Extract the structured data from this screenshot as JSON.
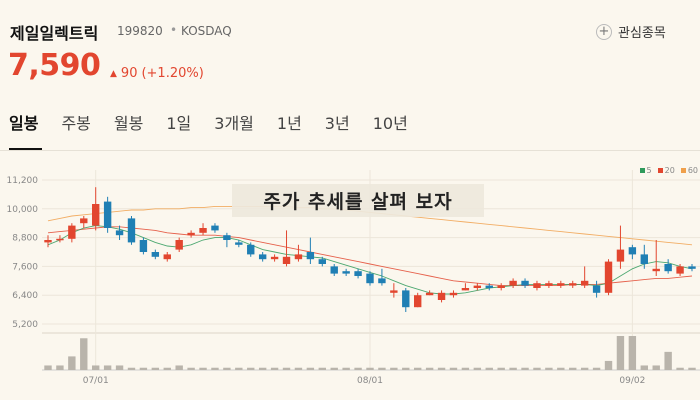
{
  "header": {
    "stock_name": "제일일렉트릭",
    "stock_code": "199820",
    "separator": "•",
    "market": "KOSDAQ",
    "watch_icon": "plus-circle-icon",
    "watch_label": "관심종목"
  },
  "quote": {
    "price": "7,590",
    "arrow": "▲",
    "change": "90",
    "change_pct": "(+1.20%)",
    "color": "#e2462f"
  },
  "tabs": [
    {
      "label": "일봉",
      "active": true
    },
    {
      "label": "주봉"
    },
    {
      "label": "월봉"
    },
    {
      "label": "1일"
    },
    {
      "label": "3개월"
    },
    {
      "label": "1년"
    },
    {
      "label": "3년"
    },
    {
      "label": "10년"
    }
  ],
  "banner_text": "주가 추세를 살펴 보자",
  "chart_data": {
    "type": "candlestick",
    "y_ticks": [
      "11,200",
      "10,000",
      "8,800",
      "7,600",
      "6,400",
      "5,200"
    ],
    "ylim": [
      5200,
      11200
    ],
    "x_ticks": [
      {
        "label": "07/01",
        "index": 4
      },
      {
        "label": "08/01",
        "index": 27
      },
      {
        "label": "09/02",
        "index": 49
      }
    ],
    "legend": [
      {
        "label": "5",
        "color": "#2e9a5b"
      },
      {
        "label": "20",
        "color": "#e2462f"
      },
      {
        "label": "60",
        "color": "#f0a04b"
      }
    ],
    "up_color": "#e2462f",
    "down_color": "#1f7fb4",
    "candles": [
      [
        8600,
        8700,
        8900,
        8400
      ],
      [
        8700,
        8750,
        8900,
        8600
      ],
      [
        8750,
        9300,
        9400,
        8600
      ],
      [
        9400,
        9600,
        9700,
        9200
      ],
      [
        9300,
        10200,
        10900,
        9100
      ],
      [
        10300,
        9200,
        10500,
        9000
      ],
      [
        9100,
        8900,
        9300,
        8700
      ],
      [
        9600,
        8600,
        9700,
        8500
      ],
      [
        8700,
        8200,
        8800,
        8100
      ],
      [
        8200,
        8000,
        8300,
        7900
      ],
      [
        7900,
        8100,
        8200,
        7800
      ],
      [
        8300,
        8700,
        8800,
        8200
      ],
      [
        8900,
        9000,
        9100,
        8800
      ],
      [
        9000,
        9200,
        9400,
        8900
      ],
      [
        9300,
        9100,
        9400,
        9000
      ],
      [
        8900,
        8700,
        9000,
        8400
      ],
      [
        8600,
        8500,
        8700,
        8400
      ],
      [
        8500,
        8100,
        8600,
        8000
      ],
      [
        8100,
        7900,
        8200,
        7800
      ],
      [
        7900,
        8000,
        8100,
        7800
      ],
      [
        7700,
        8000,
        9100,
        7600
      ],
      [
        7900,
        8100,
        8500,
        7800
      ],
      [
        8200,
        7900,
        8800,
        7700
      ],
      [
        7900,
        7700,
        8000,
        7600
      ],
      [
        7600,
        7300,
        7700,
        7200
      ],
      [
        7400,
        7300,
        7500,
        7200
      ],
      [
        7400,
        7200,
        7500,
        7100
      ],
      [
        7300,
        6900,
        7400,
        6800
      ],
      [
        7100,
        6900,
        7500,
        6800
      ],
      [
        6500,
        6600,
        6900,
        6300
      ],
      [
        6600,
        5900,
        6700,
        5700
      ],
      [
        5900,
        6400,
        6500,
        5900
      ],
      [
        6400,
        6500,
        6600,
        6400
      ],
      [
        6200,
        6500,
        6600,
        6100
      ],
      [
        6400,
        6500,
        6600,
        6300
      ],
      [
        6600,
        6700,
        6900,
        6600
      ],
      [
        6700,
        6800,
        6900,
        6600
      ],
      [
        6800,
        6700,
        6900,
        6600
      ],
      [
        6700,
        6800,
        6900,
        6600
      ],
      [
        6800,
        7000,
        7100,
        6700
      ],
      [
        7000,
        6800,
        7100,
        6700
      ],
      [
        6700,
        6900,
        7000,
        6600
      ],
      [
        6800,
        6900,
        7000,
        6700
      ],
      [
        6800,
        6900,
        7000,
        6700
      ],
      [
        6800,
        6900,
        7000,
        6700
      ],
      [
        6800,
        7000,
        7600,
        6700
      ],
      [
        6800,
        6500,
        7000,
        6300
      ],
      [
        6500,
        7800,
        7900,
        6400
      ],
      [
        7800,
        8300,
        9300,
        7500
      ],
      [
        8400,
        8100,
        8500,
        7900
      ],
      [
        8100,
        7700,
        8500,
        7500
      ],
      [
        7400,
        7500,
        8700,
        7200
      ],
      [
        7700,
        7400,
        7900,
        7300
      ],
      [
        7300,
        7600,
        7700,
        7200
      ],
      [
        7600,
        7500,
        7700,
        7400
      ]
    ],
    "volume": [
      2,
      2,
      6,
      14,
      2,
      2,
      2,
      1,
      1,
      1,
      1,
      2,
      1,
      1,
      1,
      1,
      1,
      1,
      1,
      1,
      1,
      1,
      1,
      1,
      1,
      1,
      1,
      1,
      1,
      1,
      1,
      1,
      1,
      1,
      1,
      1,
      1,
      1,
      1,
      1,
      1,
      1,
      1,
      1,
      1,
      1,
      1,
      4,
      15,
      15,
      2,
      2,
      8,
      1,
      1
    ],
    "ma5": [
      8500,
      8700,
      9000,
      9200,
      9300,
      9250,
      9150,
      9000,
      8800,
      8600,
      8450,
      8400,
      8500,
      8700,
      8800,
      8800,
      8700,
      8500,
      8300,
      8200,
      8100,
      8050,
      8000,
      7950,
      7800,
      7650,
      7500,
      7350,
      7200,
      7000,
      6800,
      6650,
      6500,
      6450,
      6450,
      6500,
      6600,
      6700,
      6750,
      6800,
      6850,
      6850,
      6850,
      6850,
      6850,
      6850,
      6800,
      6900,
      7200,
      7500,
      7700,
      7800,
      7750,
      7600,
      7500
    ],
    "ma20": [
      9000,
      9050,
      9100,
      9150,
      9200,
      9250,
      9250,
      9200,
      9150,
      9100,
      9000,
      8950,
      8900,
      8900,
      8900,
      8850,
      8800,
      8700,
      8600,
      8500,
      8400,
      8300,
      8200,
      8100,
      8000,
      7900,
      7800,
      7700,
      7600,
      7500,
      7400,
      7300,
      7200,
      7100,
      7000,
      6950,
      6900,
      6850,
      6800,
      6800,
      6800,
      6800,
      6800,
      6800,
      6850,
      6850,
      6850,
      6900,
      6950,
      7000,
      7050,
      7100,
      7100,
      7150,
      7200
    ],
    "ma60": [
      9500,
      9600,
      9700,
      9750,
      9800,
      9850,
      9900,
      9950,
      9950,
      10000,
      10000,
      10000,
      10050,
      10050,
      10100,
      10100,
      10100,
      10100,
      10100,
      10100,
      10100,
      10050,
      10050,
      10000,
      10000,
      9950,
      9900,
      9850,
      9800,
      9750,
      9700,
      9650,
      9600,
      9550,
      9500,
      9450,
      9400,
      9350,
      9300,
      9250,
      9200,
      9150,
      9100,
      9050,
      9000,
      8950,
      8900,
      8850,
      8800,
      8750,
      8700,
      8650,
      8600,
      8550,
      8500
    ]
  }
}
